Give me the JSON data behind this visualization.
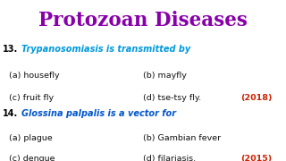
{
  "title": "Protozoan Diseases",
  "title_color": "#8800aa",
  "title_bg_color": "#c8e8c8",
  "body_bg": "#ffffff",
  "q13_num": "13.",
  "q13_text": "Trypanosomiasis is transmitted by",
  "q13_color": "#0099dd",
  "q13_a": "(a) housefly",
  "q13_b": "(b) mayfly",
  "q13_c": "(c) fruit fly",
  "q13_d": "(d) tse-tsy fly.",
  "q13_year": "(2018)",
  "q14_num": "14.",
  "q14_text": "Glossina palpalis is a vector for",
  "q14_color": "#0055cc",
  "q14_a": "(a) plague",
  "q14_b": "(b) Gambian fever",
  "q14_c": "(c) dengue",
  "q14_d": "(d) filariasis.",
  "q14_year": "(2015)",
  "year_color": "#cc2200",
  "option_color": "#111111",
  "num_color": "#000000"
}
